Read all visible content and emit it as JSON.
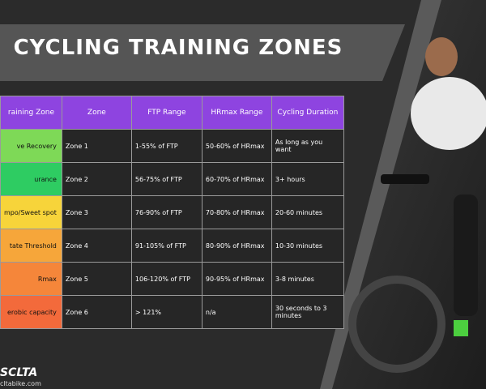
{
  "title": "CYCLING TRAINING ZONES",
  "table": {
    "header": [
      "raining Zone",
      "Zone",
      "FTP Range",
      "HRmax Range",
      "Cycling Duration"
    ],
    "rows": [
      [
        "ve Recovery",
        "Zone 1",
        "1-55% of FTP",
        "50-60% of HRmax",
        "As long as you want"
      ],
      [
        "urance",
        "Zone 2",
        "56-75% of FTP",
        "60-70% of HRmax",
        "3+ hours"
      ],
      [
        "mpo/Sweet spot",
        "Zone 3",
        "76-90% of FTP",
        "70-80% of HRmax",
        "20-60 minutes"
      ],
      [
        "tate Threshold",
        "Zone 4",
        "91-105% of FTP",
        "80-90% of HRmax",
        "10-30 minutes"
      ],
      [
        "Rmax",
        "Zone 5",
        "106-120% of FTP",
        "90-95% of HRmax",
        "3-8 minutes"
      ],
      [
        "erobic capacity",
        "Zone 6",
        "> 121%",
        "n/a",
        "30 seconds to 3 minutes"
      ]
    ]
  },
  "footer": {
    "brand": "SCLTA",
    "url": "cltabike.com"
  }
}
